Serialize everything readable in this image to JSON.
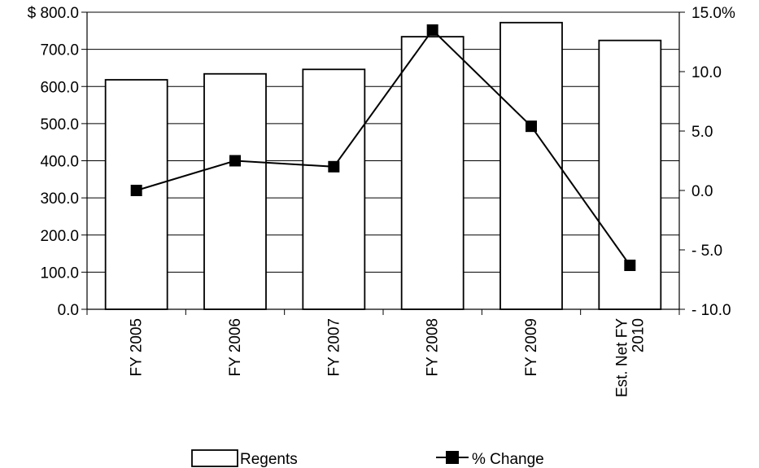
{
  "chart_data": {
    "type": "bar",
    "categories": [
      [
        "FY 2005"
      ],
      [
        "FY 2006"
      ],
      [
        "FY 2007"
      ],
      [
        "FY 2008"
      ],
      [
        "FY 2009"
      ],
      [
        "Est. Net FY",
        "2010"
      ]
    ],
    "series": [
      {
        "name": "Regents",
        "type": "bar",
        "axis": "left",
        "values": [
          618,
          634,
          646,
          734,
          772,
          724
        ]
      },
      {
        "name": "% Change",
        "type": "line",
        "axis": "right",
        "values": [
          0.0,
          2.5,
          2.0,
          13.5,
          5.4,
          -6.3
        ]
      }
    ],
    "y_left": {
      "ylim": [
        0,
        800
      ],
      "ticks": [
        0,
        100,
        200,
        300,
        400,
        500,
        600,
        700,
        800
      ],
      "tick_labels": [
        "0.0",
        "100.0",
        "200.0",
        "300.0",
        "400.0",
        "500.0",
        "600.0",
        "700.0",
        "$ 800.0"
      ]
    },
    "y_right": {
      "ylim": [
        -10,
        15
      ],
      "ticks": [
        -10,
        -5,
        0,
        5,
        10,
        15
      ],
      "tick_labels": [
        "- 10.0",
        "- 5.0",
        "0.0",
        "5.0",
        "10.0",
        "15.0%"
      ]
    },
    "grid": true,
    "legend": {
      "position": "bottom",
      "items": [
        {
          "label": "Regents",
          "symbol": "bar"
        },
        {
          "label": "% Change",
          "symbol": "line-square-marker"
        }
      ]
    },
    "colors": {
      "bar_fill": "#ffffff",
      "bar_stroke": "#000000",
      "line": "#000000",
      "gridline": "#000000"
    }
  }
}
